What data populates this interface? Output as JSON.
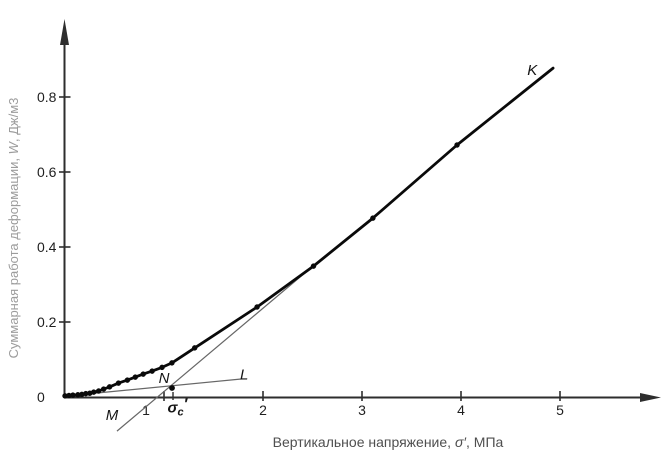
{
  "chart_data": {
    "type": "line",
    "title": "",
    "xlabel": {
      "prefix": "Вертикальное напряжение, ",
      "symbol": "σ′",
      "suffix": ", МПа"
    },
    "ylabel": {
      "prefix": "Суммарная работа деформации, ",
      "symbol": "W",
      "suffix": ", Дж/м3"
    },
    "xlim": [
      0,
      5.9
    ],
    "ylim": [
      0,
      0.98
    ],
    "grid": false,
    "legend": "none",
    "x_ticks": [
      {
        "value": 1,
        "label": "1",
        "dx": -18
      },
      {
        "value": 2,
        "label": "2",
        "dx": 0
      },
      {
        "value": 3,
        "label": "3",
        "dx": 0
      },
      {
        "value": 4,
        "label": "4",
        "dx": 0
      },
      {
        "value": 5,
        "label": "5",
        "dx": 0
      }
    ],
    "y_ticks": [
      {
        "value": 0,
        "label": "0",
        "tick": false
      },
      {
        "value": 0.2,
        "label": "0.2",
        "tick": true
      },
      {
        "value": 0.4,
        "label": "0.4",
        "tick": true
      },
      {
        "value": 0.6,
        "label": "0.6",
        "tick": true
      },
      {
        "value": 0.8,
        "label": "0.8",
        "tick": true
      }
    ],
    "series": [
      {
        "name": "W(σ′) curve K",
        "points": [
          [
            0.0,
            0.003
          ],
          [
            0.04,
            0.004
          ],
          [
            0.08,
            0.005
          ],
          [
            0.13,
            0.006
          ],
          [
            0.17,
            0.007
          ],
          [
            0.21,
            0.009
          ],
          [
            0.25,
            0.01
          ],
          [
            0.29,
            0.013
          ],
          [
            0.34,
            0.016
          ],
          [
            0.39,
            0.021
          ],
          [
            0.45,
            0.027
          ],
          [
            0.54,
            0.037
          ],
          [
            0.63,
            0.045
          ],
          [
            0.71,
            0.053
          ],
          [
            0.79,
            0.061
          ],
          [
            0.88,
            0.069
          ],
          [
            0.98,
            0.079
          ],
          [
            1.08,
            0.091
          ],
          [
            1.31,
            0.131
          ],
          [
            1.94,
            0.24
          ],
          [
            2.51,
            0.349
          ],
          [
            3.11,
            0.477
          ],
          [
            3.96,
            0.672
          ]
        ],
        "curve_end": [
          4.93,
          0.877
        ]
      }
    ],
    "tangent_lines": [
      {
        "id": "M",
        "from": [
          0.525,
          -0.091
        ],
        "to": [
          2.505,
          0.349
        ]
      },
      {
        "id": "L",
        "from": [
          -0.01,
          0.002
        ],
        "to": [
          1.78,
          0.048
        ]
      }
    ],
    "intersection_point": {
      "id": "N",
      "x": 1.081,
      "y": 0.024
    },
    "sigma_c_axis_tick": {
      "x": 1.091
    },
    "annotations": [
      {
        "id": "K",
        "label": "K",
        "x": 4.72,
        "y": 0.872
      },
      {
        "id": "L",
        "label": "L",
        "x": 1.81,
        "y": 0.06
      },
      {
        "id": "M",
        "label": "M",
        "x": 0.475,
        "y": -0.048
      },
      {
        "id": "N",
        "label": "N",
        "x": 1.0,
        "y": 0.051
      }
    ],
    "sigma_c_label": {
      "base": "σ",
      "sub": "c",
      "prime": "′",
      "x": 1.135,
      "y": -0.028
    },
    "colors": {
      "background": "#ffffff",
      "curve": "#0a0a0a",
      "marker": "#0a0a0a",
      "axis": "#2e2e2e",
      "tangent": "#676767",
      "tick_label": "#1f1f1f",
      "x_title": "#4f4f4f",
      "y_title": "#9c9c9c",
      "annotation": "#141414"
    }
  }
}
